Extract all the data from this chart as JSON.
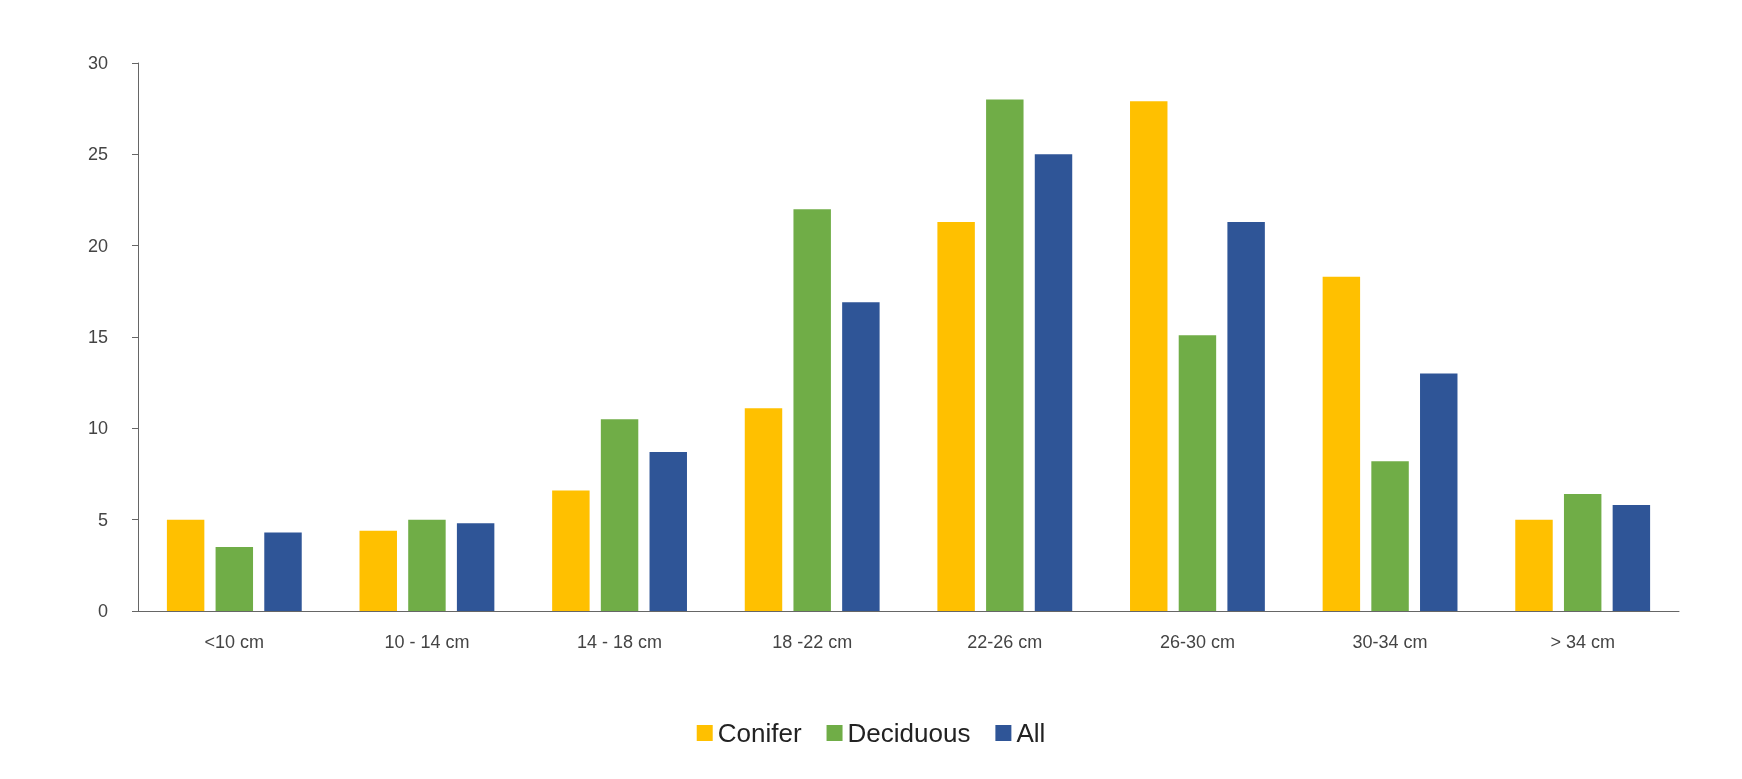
{
  "chart_data": {
    "type": "bar",
    "categories": [
      "<10 cm",
      "10 - 14 cm",
      "14 - 18 cm",
      "18 -22 cm",
      "22-26 cm",
      "26-30 cm",
      "30-34 cm",
      "> 34 cm"
    ],
    "series": [
      {
        "name": "Conifer",
        "color": "#ffc000",
        "values": [
          5.0,
          4.4,
          6.6,
          11.1,
          21.3,
          27.9,
          18.3,
          5.0
        ]
      },
      {
        "name": "Deciduous",
        "color": "#70ad47",
        "values": [
          3.5,
          5.0,
          10.5,
          22.0,
          28.0,
          15.1,
          8.2,
          6.4
        ]
      },
      {
        "name": "All",
        "color": "#2f5597",
        "values": [
          4.3,
          4.8,
          8.7,
          16.9,
          25.0,
          21.3,
          13.0,
          5.8
        ]
      }
    ],
    "ylim": [
      0,
      30
    ],
    "yticks": [
      0,
      5,
      10,
      15,
      20,
      25,
      30
    ],
    "grid": false,
    "legend": "bottom"
  }
}
